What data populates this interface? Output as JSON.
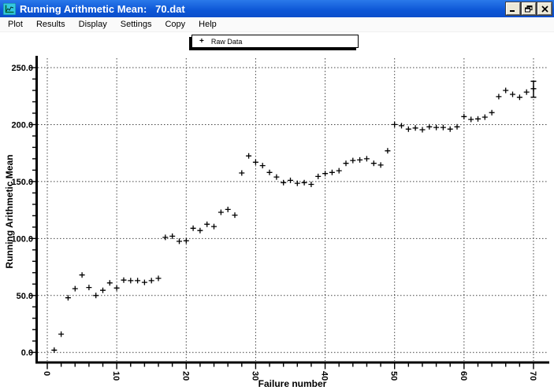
{
  "window": {
    "title": "Running Arithmetic Mean:   70.dat",
    "icon": "chart-app-icon",
    "buttons": [
      {
        "name": "minimize",
        "glyph": "minimize-icon"
      },
      {
        "name": "restore",
        "glyph": "restore-icon"
      },
      {
        "name": "close",
        "glyph": "close-icon"
      }
    ]
  },
  "menu": {
    "items": [
      "Plot",
      "Results",
      "Display",
      "Settings",
      "Copy",
      "Help"
    ]
  },
  "legend": {
    "marker": "+",
    "label": "Raw Data"
  },
  "colors": {
    "titlebar_blue": "#0d56d6",
    "axis_black": "#000000",
    "grid_gray": "#444444",
    "marker_black": "#000000",
    "icon_cyan": "#35c8e0"
  },
  "chart_data": {
    "type": "scatter",
    "title": "",
    "xlabel": "Failure number",
    "ylabel": "Running Arithmetic Mean",
    "xlim": [
      -1.5,
      72
    ],
    "ylim": [
      -9,
      259
    ],
    "grid": "dotted at major ticks, both axes",
    "legend_position": "top-center boxed above plot",
    "x_ticks": [
      0,
      10,
      20,
      30,
      40,
      50,
      60,
      70
    ],
    "x_tick_labels": [
      "0",
      "10",
      "20",
      "30",
      "40",
      "50",
      "60",
      "70"
    ],
    "x_tick_label_rotation": 90,
    "x_minor_tick_step": 2,
    "y_ticks": [
      0,
      50,
      100,
      150,
      200,
      250
    ],
    "y_tick_labels": [
      "0.0",
      "50.0",
      "100.0",
      "150.0",
      "200.0",
      "250.0"
    ],
    "y_minor_tick_step": 10,
    "series": [
      {
        "name": "Raw Data",
        "marker": "plus",
        "color": "#000000",
        "points": [
          [
            1,
            2
          ],
          [
            2,
            16
          ],
          [
            3,
            48
          ],
          [
            4,
            56
          ],
          [
            5,
            68
          ],
          [
            6,
            57
          ],
          [
            7,
            50
          ],
          [
            8,
            54.5
          ],
          [
            9,
            61
          ],
          [
            10,
            56.5
          ],
          [
            11,
            63.5
          ],
          [
            12,
            63
          ],
          [
            13,
            63
          ],
          [
            14,
            61.5
          ],
          [
            15,
            63
          ],
          [
            16,
            65
          ],
          [
            17,
            101
          ],
          [
            18,
            102
          ],
          [
            19,
            97.5
          ],
          [
            20,
            98
          ],
          [
            21,
            109
          ],
          [
            22,
            107
          ],
          [
            23,
            112.5
          ],
          [
            24,
            110.5
          ],
          [
            25,
            123
          ],
          [
            26,
            125.5
          ],
          [
            27,
            120.5
          ],
          [
            28,
            157.5
          ],
          [
            29,
            172.5
          ],
          [
            30,
            167
          ],
          [
            31,
            164
          ],
          [
            32,
            158
          ],
          [
            33,
            154
          ],
          [
            34,
            149
          ],
          [
            35,
            151
          ],
          [
            36,
            148.5
          ],
          [
            37,
            149
          ],
          [
            38,
            147.5
          ],
          [
            39,
            154.5
          ],
          [
            40,
            157
          ],
          [
            41,
            158
          ],
          [
            42,
            159.5
          ],
          [
            43,
            166
          ],
          [
            44,
            168.5
          ],
          [
            45,
            169
          ],
          [
            46,
            170
          ],
          [
            47,
            166
          ],
          [
            48,
            164.5
          ],
          [
            49,
            177
          ],
          [
            50,
            200
          ],
          [
            51,
            199
          ],
          [
            52,
            196
          ],
          [
            53,
            197
          ],
          [
            54,
            195.5
          ],
          [
            55,
            198
          ],
          [
            56,
            197.5
          ],
          [
            57,
            197.5
          ],
          [
            58,
            196
          ],
          [
            59,
            198
          ],
          [
            60,
            207
          ],
          [
            61,
            204.5
          ],
          [
            62,
            205
          ],
          [
            63,
            206.5
          ],
          [
            64,
            210.5
          ],
          [
            65,
            224.5
          ],
          [
            66,
            230
          ],
          [
            67,
            226.5
          ],
          [
            68,
            224
          ],
          [
            69,
            228.5
          ],
          [
            70,
            231.5
          ]
        ],
        "error_bar_on_last_point": {
          "x": 70,
          "y": 231.5,
          "low": 224,
          "high": 238
        }
      }
    ]
  }
}
